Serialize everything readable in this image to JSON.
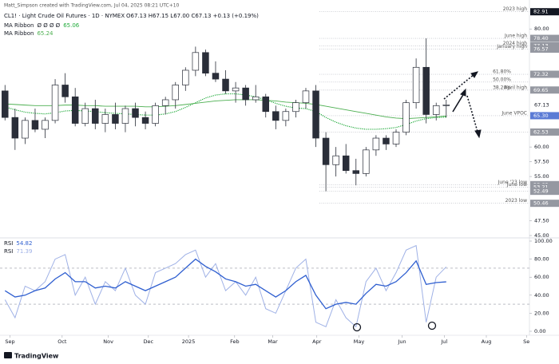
{
  "attribution": "Matt_Simpson created with TradingView.com, Jul 04, 2025 08:21 UTC+10",
  "footer": "TradingView",
  "chart_data": [
    {
      "type": "candlestick",
      "title": "CL1! · Light Crude Oil Futures · 1D · NYMEX",
      "quote": "O67.13 H67.15 L67.00 C67.13 +0.13 (+0.19%)",
      "categories": [
        null,
        null,
        null,
        null,
        null,
        null,
        null,
        null,
        null,
        null,
        null,
        null,
        null,
        null,
        null,
        null,
        null,
        null,
        null,
        null,
        null,
        null,
        null,
        null,
        null,
        null,
        null,
        null,
        null,
        null,
        null,
        null,
        null,
        null,
        null,
        null,
        null,
        null,
        null,
        null,
        null,
        null,
        null,
        null,
        null
      ],
      "open": [
        69.5,
        65.0,
        61.5,
        64.5,
        63.0,
        64.5,
        70.5,
        68.5,
        64.0,
        66.5,
        64.0,
        65.5,
        64.0,
        66.5,
        65.0,
        64.0,
        67.0,
        68.0,
        70.5,
        73.0,
        76.0,
        72.5,
        71.5,
        69.5,
        70.0,
        68.0,
        68.5,
        66.0,
        64.5,
        66.0,
        67.5,
        69.5,
        61.5,
        57.0,
        58.5,
        56.0,
        55.5,
        59.5,
        61.5,
        60.5,
        62.5,
        67.5,
        73.5,
        65.5,
        67.0
      ],
      "high": [
        70.5,
        66.5,
        65.0,
        66.5,
        65.0,
        71.5,
        72.5,
        70.0,
        67.5,
        68.0,
        66.5,
        67.5,
        67.0,
        67.5,
        66.0,
        67.5,
        68.5,
        71.0,
        73.5,
        77.0,
        76.5,
        74.5,
        73.0,
        71.0,
        70.5,
        70.5,
        69.0,
        67.0,
        66.5,
        68.0,
        70.0,
        70.5,
        62.5,
        60.0,
        60.5,
        58.0,
        60.0,
        62.0,
        62.0,
        63.0,
        68.0,
        75.0,
        78.4,
        67.5,
        68.0
      ],
      "low": [
        64.5,
        59.5,
        60.5,
        62.5,
        61.5,
        64.0,
        67.5,
        63.5,
        63.5,
        63.0,
        62.5,
        63.0,
        62.5,
        63.5,
        63.0,
        63.5,
        65.5,
        66.5,
        69.5,
        72.0,
        72.0,
        71.0,
        69.0,
        67.5,
        67.0,
        67.5,
        65.0,
        63.0,
        63.5,
        65.0,
        66.5,
        60.0,
        52.5,
        55.0,
        55.5,
        53.5,
        55.0,
        58.5,
        59.5,
        60.0,
        62.0,
        66.5,
        64.0,
        64.5,
        65.0
      ],
      "close": [
        65.0,
        61.5,
        64.5,
        63.0,
        64.5,
        70.5,
        68.5,
        64.0,
        66.5,
        64.0,
        65.5,
        64.0,
        66.5,
        65.0,
        64.0,
        67.0,
        68.0,
        70.5,
        73.0,
        76.0,
        72.5,
        71.5,
        69.5,
        70.0,
        68.0,
        68.5,
        66.0,
        64.5,
        66.0,
        67.5,
        69.5,
        61.5,
        57.0,
        58.5,
        56.0,
        55.5,
        59.5,
        61.5,
        60.5,
        62.5,
        67.5,
        73.5,
        65.5,
        67.0,
        67.13
      ],
      "up_color": "#ffffff",
      "down_color": "#2a2e39",
      "series": [
        {
          "name": "MA Ribbon",
          "params": "Ø Ø Ø Ø",
          "last_label": "65.06",
          "color": "#22ab3c",
          "style": "dotted",
          "values": [
            66.8,
            66.3,
            65.9,
            65.7,
            65.6,
            65.8,
            66.1,
            66.2,
            66.1,
            66.0,
            65.8,
            65.7,
            65.6,
            65.5,
            65.4,
            65.4,
            65.6,
            66.0,
            66.7,
            67.5,
            68.3,
            68.8,
            69.0,
            69.0,
            68.8,
            68.5,
            68.0,
            67.4,
            66.9,
            66.6,
            66.5,
            66.0,
            65.0,
            64.2,
            63.6,
            63.2,
            63.0,
            63.0,
            63.1,
            63.3,
            63.8,
            64.4,
            64.8,
            65.0,
            65.06
          ]
        },
        {
          "name": "MA Ribbon",
          "last_label": "65.24",
          "color": "#4caf50",
          "style": "solid",
          "values": [
            67.3,
            67.2,
            67.1,
            67.0,
            67.0,
            67.0,
            67.1,
            67.1,
            67.0,
            67.0,
            66.9,
            66.9,
            66.9,
            66.9,
            66.8,
            66.8,
            66.9,
            67.0,
            67.2,
            67.4,
            67.6,
            67.8,
            67.9,
            68.0,
            68.0,
            68.0,
            67.9,
            67.8,
            67.6,
            67.5,
            67.4,
            67.2,
            66.9,
            66.6,
            66.3,
            66.0,
            65.7,
            65.4,
            65.1,
            64.9,
            64.8,
            64.9,
            65.0,
            65.1,
            65.24
          ]
        }
      ],
      "levels": [
        {
          "value": 82.91,
          "label": "82.91",
          "note": "2023 high",
          "color": "#131722"
        },
        {
          "value": 78.4,
          "label": "78.40",
          "note": "June high",
          "color": "#9598a1"
        },
        {
          "value": 77.13,
          "label": "77.13",
          "note": "2024 high",
          "color": "#9598a1"
        },
        {
          "value": 76.57,
          "label": "76.57",
          "note": "January high",
          "color": "#9598a1"
        },
        {
          "value": 72.32,
          "label": "72.32",
          "note": "61.80%",
          "color": "#9598a1"
        },
        {
          "value": 70.99,
          "note": "50.00%"
        },
        {
          "value": 69.65,
          "note": "38.20%"
        },
        {
          "value": 69.65,
          "label": "69.65",
          "note": "April high",
          "color": "#9598a1"
        },
        {
          "value": 65.3,
          "label": "65.30",
          "note": "June VPOC",
          "color": "#5b7bd5"
        },
        {
          "value": 62.53,
          "label": "62.53",
          "color": "#9598a1"
        },
        {
          "value": 53.62,
          "label": "53.62",
          "note": "June '23 low",
          "color": "#9598a1"
        },
        {
          "value": 53.21,
          "label": "53.21",
          "note": "June low",
          "color": "#9598a1"
        },
        {
          "value": 52.49,
          "label": "52.49",
          "color": "#9598a1"
        },
        {
          "value": 50.46,
          "label": "50.46",
          "note": "2023 low",
          "color": "#9598a1"
        }
      ],
      "last": 67.13,
      "xlim": [
        -0.5,
        52.3
      ],
      "xticks": [
        {
          "value": 0.5,
          "label": "Sep"
        },
        {
          "value": 5.7,
          "label": "Oct"
        },
        {
          "value": 10.3,
          "label": "Nov"
        },
        {
          "value": 14.3,
          "label": "Dec"
        },
        {
          "value": 18.3,
          "label": "2025"
        },
        {
          "value": 22.9,
          "label": "Feb"
        },
        {
          "value": 26.7,
          "label": "Mar"
        },
        {
          "value": 31.1,
          "label": "Apr"
        },
        {
          "value": 35.3,
          "label": "May"
        },
        {
          "value": 39.6,
          "label": "Jun"
        },
        {
          "value": 43.8,
          "label": "Jul"
        },
        {
          "value": 48.0,
          "label": "Aug"
        },
        {
          "value": 52.0,
          "label": "Se"
        }
      ],
      "ylim": [
        44.6,
        84.9
      ],
      "yticks": [
        {
          "value": 45,
          "label": "45.00"
        },
        {
          "value": 47.5,
          "label": "47.50"
        },
        {
          "value": 55,
          "label": "55.00"
        },
        {
          "value": 57.5,
          "label": "57.50"
        },
        {
          "value": 60,
          "label": "60.00"
        },
        {
          "value": 80,
          "label": "80.00"
        }
      ]
    },
    {
      "type": "line",
      "categories": [
        null,
        null,
        null,
        null,
        null,
        null,
        null,
        null,
        null,
        null,
        null,
        null,
        null,
        null,
        null,
        null,
        null,
        null,
        null,
        null,
        null,
        null,
        null,
        null,
        null,
        null,
        null,
        null,
        null,
        null,
        null,
        null,
        null,
        null,
        null,
        null,
        null,
        null,
        null,
        null,
        null,
        null,
        null,
        null,
        null
      ],
      "series": [
        {
          "name": "RSI",
          "last_label": "54.82",
          "color": "#2f5fd0",
          "width": 1.3,
          "values": [
            45,
            38,
            40,
            45,
            48,
            58,
            65,
            55,
            55,
            48,
            50,
            48,
            55,
            50,
            45,
            50,
            55,
            60,
            70,
            80,
            72,
            66,
            58,
            55,
            50,
            52,
            45,
            38,
            45,
            55,
            62,
            40,
            25,
            30,
            32,
            30,
            42,
            52,
            50,
            55,
            65,
            78,
            52,
            54,
            54.82
          ]
        },
        {
          "name": "RSI",
          "last_label": "71.39",
          "color": "#9fb1e6",
          "width": 1,
          "values": [
            35,
            15,
            50,
            45,
            55,
            80,
            85,
            40,
            60,
            30,
            55,
            45,
            70,
            40,
            30,
            65,
            70,
            75,
            85,
            90,
            60,
            75,
            45,
            55,
            40,
            60,
            25,
            20,
            45,
            70,
            80,
            10,
            5,
            35,
            15,
            5,
            55,
            70,
            45,
            65,
            90,
            95,
            10,
            60,
            71.39
          ]
        }
      ],
      "bands": [
        30,
        70
      ],
      "xlim": [
        -0.5,
        52.3
      ],
      "ylim": [
        0,
        100
      ],
      "yticks": [
        {
          "value": 0,
          "label": "0.00"
        },
        {
          "value": 20,
          "label": "20.00"
        },
        {
          "value": 40,
          "label": "40.00"
        },
        {
          "value": 60,
          "label": "60.00"
        },
        {
          "value": 80,
          "label": "80.00"
        },
        {
          "value": 100,
          "label": "100.00"
        }
      ]
    }
  ]
}
